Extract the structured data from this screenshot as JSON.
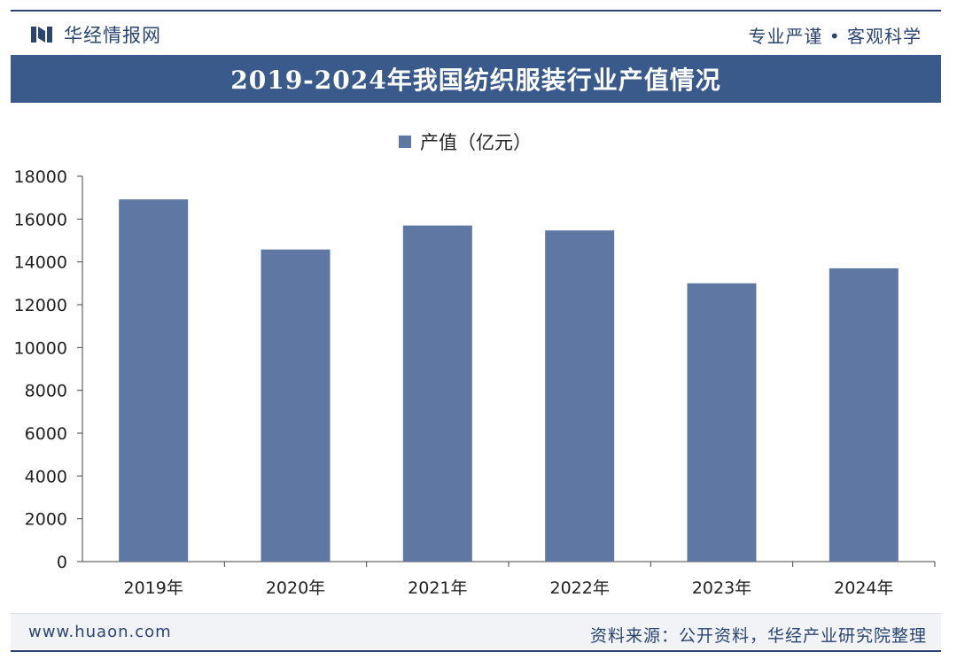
{
  "header": {
    "brand": "华经情报网",
    "slogan": "专业严谨 • 客观科学"
  },
  "footer": {
    "url": "www.huaon.com",
    "source": "资料来源：公开资料，华经产业研究院整理"
  },
  "colors": {
    "title_bar": "#3a5a8c",
    "bar": "#5f78a3",
    "brand_text": "#2c4570"
  },
  "chart_data": {
    "type": "bar",
    "title": "2019-2024年我国纺织服装行业产值情况",
    "categories": [
      "2019年",
      "2020年",
      "2021年",
      "2022年",
      "2023年",
      "2024年"
    ],
    "series": [
      {
        "name": "产值（亿元）",
        "values": [
          16920,
          14580,
          15700,
          15470,
          13000,
          13700
        ]
      }
    ],
    "ylim": [
      0,
      18000
    ],
    "yticks": [
      0,
      2000,
      4000,
      6000,
      8000,
      10000,
      12000,
      14000,
      16000,
      18000
    ],
    "xlabel": "",
    "ylabel": "",
    "legend": "top-center",
    "grid": false
  }
}
